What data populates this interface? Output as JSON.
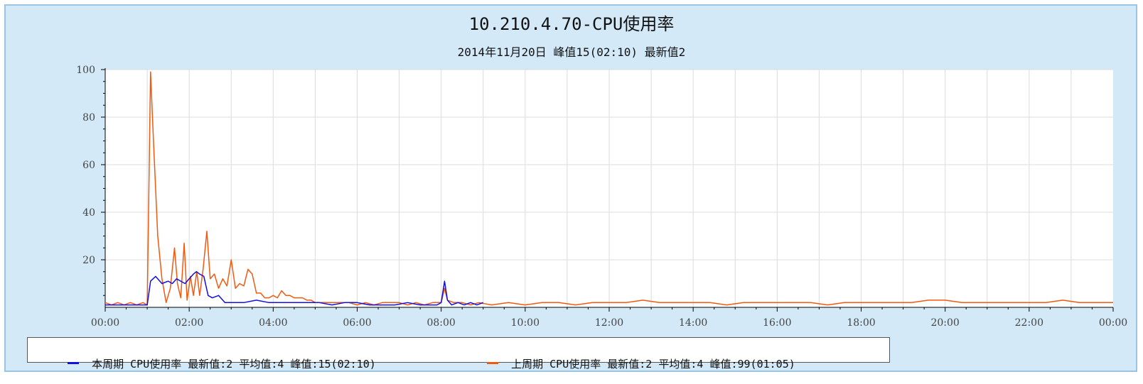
{
  "chart_data": {
    "type": "line",
    "title": "10.210.4.70-CPU使用率",
    "subtitle": "2014年11月20日 峰值15(02:10) 最新值2",
    "ylim": [
      0,
      100
    ],
    "yticks": [
      20,
      40,
      60,
      80,
      100
    ],
    "xlim_hours": [
      0,
      24
    ],
    "xtick_labels": [
      "00:00",
      "02:00",
      "04:00",
      "06:00",
      "08:00",
      "10:00",
      "12:00",
      "14:00",
      "16:00",
      "18:00",
      "20:00",
      "22:00",
      "00:00"
    ],
    "grid": true,
    "legend_position": "bottom-left",
    "series": [
      {
        "name": "本周期 CPU使用率 最新值:2 平均值:4 峰值:15(02:10)",
        "color": "#1010e0",
        "x": [
          0,
          0.3,
          0.6,
          0.9,
          1.0,
          1.08,
          1.2,
          1.35,
          1.5,
          1.6,
          1.7,
          1.8,
          1.9,
          2.0,
          2.1,
          2.17,
          2.25,
          2.35,
          2.45,
          2.55,
          2.7,
          2.85,
          3.0,
          3.3,
          3.6,
          3.9,
          4.2,
          4.5,
          4.8,
          5.1,
          5.4,
          5.7,
          6.0,
          6.3,
          6.6,
          6.9,
          7.2,
          7.5,
          7.7,
          7.9,
          8.0,
          8.08,
          8.15,
          8.25,
          8.4,
          8.55,
          8.7,
          8.85,
          9.0,
          24
        ],
        "y": [
          1,
          1,
          1,
          1,
          1,
          11,
          13,
          10,
          11,
          10,
          12,
          11,
          10,
          12,
          14,
          15,
          14,
          13,
          5,
          4,
          5,
          2,
          2,
          2,
          3,
          2,
          2,
          2,
          2,
          2,
          1,
          2,
          2,
          1,
          1,
          1,
          2,
          1,
          1,
          1,
          2,
          11,
          3,
          1,
          2,
          1,
          2,
          1,
          2,
          null
        ]
      },
      {
        "name": "上周期 CPU使用率 最新值:2 平均值:4 峰值:99(01:05)",
        "color": "#f05a10",
        "x": [
          0,
          0.15,
          0.3,
          0.45,
          0.6,
          0.75,
          0.9,
          1.0,
          1.08,
          1.15,
          1.25,
          1.35,
          1.45,
          1.55,
          1.65,
          1.72,
          1.8,
          1.88,
          1.95,
          2.03,
          2.1,
          2.18,
          2.25,
          2.33,
          2.42,
          2.5,
          2.6,
          2.7,
          2.8,
          2.9,
          3.0,
          3.1,
          3.2,
          3.3,
          3.4,
          3.5,
          3.6,
          3.7,
          3.8,
          3.9,
          4.0,
          4.1,
          4.2,
          4.3,
          4.4,
          4.5,
          4.6,
          4.7,
          4.8,
          4.9,
          5.0,
          5.2,
          5.4,
          5.6,
          5.8,
          6.0,
          6.2,
          6.4,
          6.6,
          6.8,
          7.0,
          7.2,
          7.4,
          7.6,
          7.8,
          8.0,
          8.08,
          8.15,
          8.3,
          8.5,
          8.7,
          8.9,
          9.2,
          9.6,
          10.0,
          10.4,
          10.8,
          11.2,
          11.6,
          12.0,
          12.4,
          12.8,
          13.2,
          13.6,
          14.0,
          14.4,
          14.8,
          15.2,
          15.6,
          16.0,
          16.4,
          16.8,
          17.2,
          17.6,
          18.0,
          18.4,
          18.8,
          19.2,
          19.6,
          20.0,
          20.4,
          20.8,
          21.2,
          21.6,
          22.0,
          22.4,
          22.8,
          23.2,
          23.6,
          24.0
        ],
        "y": [
          2,
          1,
          2,
          1,
          2,
          1,
          2,
          1,
          99,
          70,
          30,
          12,
          2,
          8,
          25,
          10,
          4,
          27,
          3,
          13,
          5,
          15,
          5,
          16,
          32,
          12,
          14,
          8,
          12,
          9,
          20,
          8,
          10,
          9,
          16,
          14,
          6,
          6,
          4,
          4,
          5,
          4,
          7,
          5,
          5,
          4,
          4,
          4,
          3,
          3,
          2,
          2,
          2,
          2,
          2,
          1,
          2,
          1,
          2,
          2,
          2,
          1,
          2,
          1,
          2,
          2,
          8,
          3,
          2,
          2,
          1,
          2,
          1,
          2,
          1,
          2,
          2,
          1,
          2,
          2,
          2,
          3,
          2,
          2,
          2,
          2,
          1,
          2,
          2,
          2,
          2,
          2,
          1,
          2,
          2,
          2,
          2,
          2,
          3,
          3,
          2,
          2,
          2,
          2,
          2,
          2,
          3,
          2,
          2,
          2
        ]
      }
    ]
  }
}
